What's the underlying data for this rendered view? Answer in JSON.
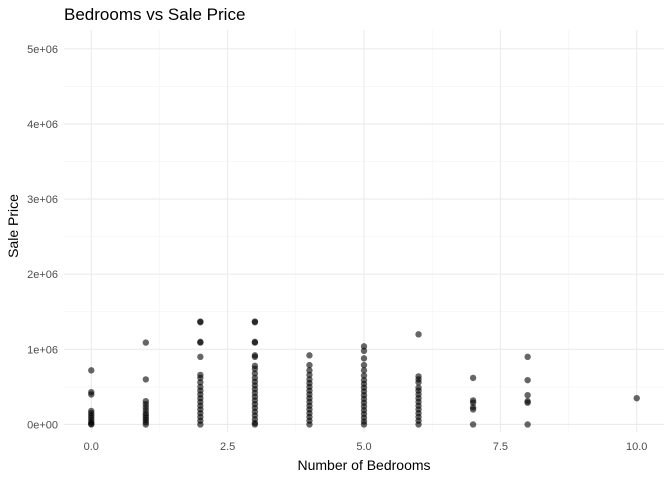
{
  "chart_data": {
    "type": "scatter",
    "title": "Bedrooms vs Sale Price",
    "xlabel": "Number of Bedrooms",
    "ylabel": "Sale Price",
    "xlim": [
      -0.5,
      10.5
    ],
    "ylim": [
      -100000,
      5250000
    ],
    "x_ticks": [
      0,
      2.5,
      5,
      7.5,
      10
    ],
    "x_tick_labels": [
      "0.0",
      "2.5",
      "5.0",
      "7.5",
      "10.0"
    ],
    "y_ticks": [
      0,
      1000000,
      2000000,
      3000000,
      4000000,
      5000000
    ],
    "y_tick_labels": [
      "0e+00",
      "1e+06",
      "2e+06",
      "3e+06",
      "4e+06",
      "5e+06"
    ],
    "grid": true,
    "point_color": "#000000",
    "point_alpha": 0.6,
    "points": [
      {
        "x": 0,
        "y": 720000
      },
      {
        "x": 0,
        "y": 430000
      },
      {
        "x": 0,
        "y": 400000
      },
      {
        "x": 0,
        "y": 180000
      },
      {
        "x": 0,
        "y": 150000
      },
      {
        "x": 0,
        "y": 120000
      },
      {
        "x": 0,
        "y": 90000
      },
      {
        "x": 0,
        "y": 60000
      },
      {
        "x": 0,
        "y": 30000
      },
      {
        "x": 0,
        "y": 10000
      },
      {
        "x": 0,
        "y": 0
      },
      {
        "x": 1,
        "y": 1090000
      },
      {
        "x": 1,
        "y": 600000
      },
      {
        "x": 1,
        "y": 310000
      },
      {
        "x": 1,
        "y": 270000
      },
      {
        "x": 1,
        "y": 230000
      },
      {
        "x": 1,
        "y": 190000
      },
      {
        "x": 1,
        "y": 150000
      },
      {
        "x": 1,
        "y": 120000
      },
      {
        "x": 1,
        "y": 90000
      },
      {
        "x": 1,
        "y": 60000
      },
      {
        "x": 1,
        "y": 30000
      },
      {
        "x": 1,
        "y": 0
      },
      {
        "x": 2,
        "y": 1370000
      },
      {
        "x": 2,
        "y": 1360000
      },
      {
        "x": 2,
        "y": 1100000
      },
      {
        "x": 2,
        "y": 1090000
      },
      {
        "x": 2,
        "y": 900000
      },
      {
        "x": 2,
        "y": 660000
      },
      {
        "x": 2,
        "y": 620000
      },
      {
        "x": 2,
        "y": 560000
      },
      {
        "x": 2,
        "y": 500000
      },
      {
        "x": 2,
        "y": 450000
      },
      {
        "x": 2,
        "y": 400000
      },
      {
        "x": 2,
        "y": 350000
      },
      {
        "x": 2,
        "y": 300000
      },
      {
        "x": 2,
        "y": 250000
      },
      {
        "x": 2,
        "y": 200000
      },
      {
        "x": 2,
        "y": 150000
      },
      {
        "x": 2,
        "y": 100000
      },
      {
        "x": 2,
        "y": 50000
      },
      {
        "x": 2,
        "y": 0
      },
      {
        "x": 3,
        "y": 1370000
      },
      {
        "x": 3,
        "y": 1360000
      },
      {
        "x": 3,
        "y": 1100000
      },
      {
        "x": 3,
        "y": 1090000
      },
      {
        "x": 3,
        "y": 920000
      },
      {
        "x": 3,
        "y": 900000
      },
      {
        "x": 3,
        "y": 780000
      },
      {
        "x": 3,
        "y": 740000
      },
      {
        "x": 3,
        "y": 680000
      },
      {
        "x": 3,
        "y": 620000
      },
      {
        "x": 3,
        "y": 570000
      },
      {
        "x": 3,
        "y": 520000
      },
      {
        "x": 3,
        "y": 470000
      },
      {
        "x": 3,
        "y": 420000
      },
      {
        "x": 3,
        "y": 370000
      },
      {
        "x": 3,
        "y": 320000
      },
      {
        "x": 3,
        "y": 270000
      },
      {
        "x": 3,
        "y": 220000
      },
      {
        "x": 3,
        "y": 170000
      },
      {
        "x": 3,
        "y": 120000
      },
      {
        "x": 3,
        "y": 70000
      },
      {
        "x": 3,
        "y": 20000
      },
      {
        "x": 3,
        "y": 0
      },
      {
        "x": 4,
        "y": 920000
      },
      {
        "x": 4,
        "y": 790000
      },
      {
        "x": 4,
        "y": 720000
      },
      {
        "x": 4,
        "y": 660000
      },
      {
        "x": 4,
        "y": 600000
      },
      {
        "x": 4,
        "y": 550000
      },
      {
        "x": 4,
        "y": 500000
      },
      {
        "x": 4,
        "y": 450000
      },
      {
        "x": 4,
        "y": 400000
      },
      {
        "x": 4,
        "y": 350000
      },
      {
        "x": 4,
        "y": 300000
      },
      {
        "x": 4,
        "y": 250000
      },
      {
        "x": 4,
        "y": 200000
      },
      {
        "x": 4,
        "y": 150000
      },
      {
        "x": 4,
        "y": 100000
      },
      {
        "x": 4,
        "y": 50000
      },
      {
        "x": 4,
        "y": 0
      },
      {
        "x": 5,
        "y": 1040000
      },
      {
        "x": 5,
        "y": 980000
      },
      {
        "x": 5,
        "y": 880000
      },
      {
        "x": 5,
        "y": 790000
      },
      {
        "x": 5,
        "y": 720000
      },
      {
        "x": 5,
        "y": 650000
      },
      {
        "x": 5,
        "y": 590000
      },
      {
        "x": 5,
        "y": 540000
      },
      {
        "x": 5,
        "y": 490000
      },
      {
        "x": 5,
        "y": 440000
      },
      {
        "x": 5,
        "y": 390000
      },
      {
        "x": 5,
        "y": 340000
      },
      {
        "x": 5,
        "y": 290000
      },
      {
        "x": 5,
        "y": 240000
      },
      {
        "x": 5,
        "y": 190000
      },
      {
        "x": 5,
        "y": 140000
      },
      {
        "x": 5,
        "y": 90000
      },
      {
        "x": 5,
        "y": 40000
      },
      {
        "x": 5,
        "y": 0
      },
      {
        "x": 6,
        "y": 1200000
      },
      {
        "x": 6,
        "y": 640000
      },
      {
        "x": 6,
        "y": 600000
      },
      {
        "x": 6,
        "y": 560000
      },
      {
        "x": 6,
        "y": 490000
      },
      {
        "x": 6,
        "y": 450000
      },
      {
        "x": 6,
        "y": 400000
      },
      {
        "x": 6,
        "y": 350000
      },
      {
        "x": 6,
        "y": 300000
      },
      {
        "x": 6,
        "y": 250000
      },
      {
        "x": 6,
        "y": 200000
      },
      {
        "x": 6,
        "y": 150000
      },
      {
        "x": 6,
        "y": 100000
      },
      {
        "x": 6,
        "y": 50000
      },
      {
        "x": 6,
        "y": 0
      },
      {
        "x": 7,
        "y": 620000
      },
      {
        "x": 7,
        "y": 320000
      },
      {
        "x": 7,
        "y": 290000
      },
      {
        "x": 7,
        "y": 230000
      },
      {
        "x": 7,
        "y": 200000
      },
      {
        "x": 7,
        "y": 0
      },
      {
        "x": 8,
        "y": 900000
      },
      {
        "x": 8,
        "y": 590000
      },
      {
        "x": 8,
        "y": 390000
      },
      {
        "x": 8,
        "y": 310000
      },
      {
        "x": 8,
        "y": 290000
      },
      {
        "x": 8,
        "y": 0
      },
      {
        "x": 10,
        "y": 350000
      }
    ]
  }
}
